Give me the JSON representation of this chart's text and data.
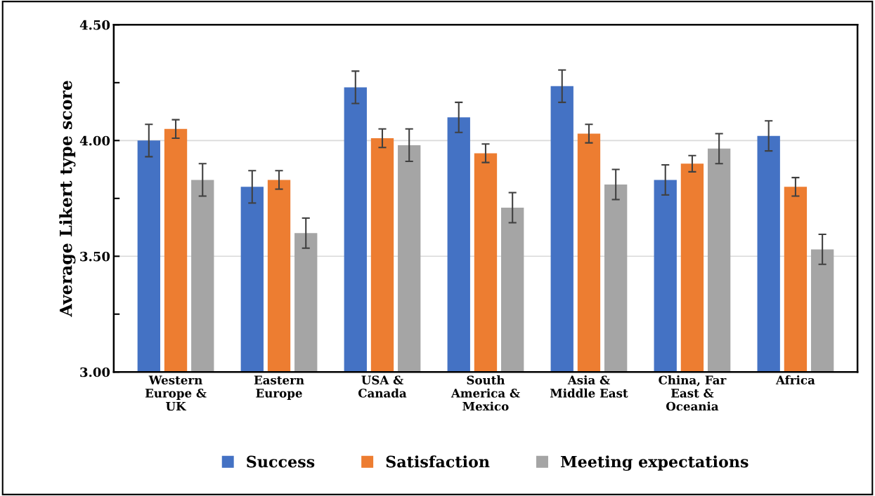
{
  "chart_data": {
    "type": "bar",
    "ylabel": "Average Likert type score",
    "categories": [
      "Western\nEurope &\nUK",
      "Eastern\nEurope",
      "USA &\nCanada",
      "South\nAmerica &\nMexico",
      "Asia &\nMiddle East",
      "China, Far\nEast &\nOceania",
      "Africa"
    ],
    "series": [
      {
        "name": "Success",
        "color": "#4472c4",
        "values": [
          4.0,
          3.8,
          4.23,
          4.1,
          4.235,
          3.83,
          4.02
        ],
        "errors": [
          0.07,
          0.07,
          0.07,
          0.065,
          0.07,
          0.065,
          0.065
        ]
      },
      {
        "name": "Satisfaction",
        "color": "#ed7d31",
        "values": [
          4.05,
          3.83,
          4.01,
          3.945,
          4.03,
          3.9,
          3.8
        ],
        "errors": [
          0.04,
          0.04,
          0.04,
          0.04,
          0.04,
          0.035,
          0.04
        ]
      },
      {
        "name": "Meeting expectations",
        "color": "#a5a5a5",
        "values": [
          3.83,
          3.6,
          3.98,
          3.71,
          3.81,
          3.965,
          3.53
        ],
        "errors": [
          0.07,
          0.065,
          0.07,
          0.065,
          0.065,
          0.065,
          0.065
        ]
      }
    ],
    "ylim": [
      3.0,
      4.5
    ],
    "yticks": [
      {
        "value": 3.0,
        "label": "3.00"
      },
      {
        "value": 3.25,
        "label": null
      },
      {
        "value": 3.5,
        "label": "3.50"
      },
      {
        "value": 3.75,
        "label": null
      },
      {
        "value": 4.0,
        "label": "4.00"
      },
      {
        "value": 4.25,
        "label": null
      },
      {
        "value": 4.5,
        "label": "4.50"
      }
    ],
    "grid": "y",
    "legend": "bottom"
  }
}
